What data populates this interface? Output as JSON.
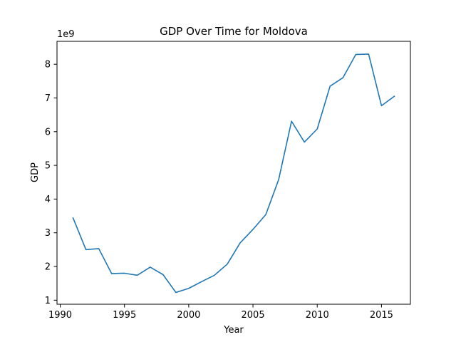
{
  "chart_data": {
    "type": "line",
    "title": "GDP Over Time for Moldova",
    "xlabel": "Year",
    "ylabel": "GDP",
    "y_offset_label": "1e9",
    "xlim": [
      1989.75,
      2017.25
    ],
    "ylim": [
      0.88,
      8.68
    ],
    "x_ticks": [
      1990,
      1995,
      2000,
      2005,
      2010,
      2015
    ],
    "y_ticks": [
      1,
      2,
      3,
      4,
      5,
      6,
      7,
      8
    ],
    "grid": false,
    "legend": "none",
    "line_color": "#1f77b4",
    "series": [
      {
        "x": [
          1991,
          1992,
          1993,
          1994,
          1995,
          1996,
          1997,
          1998,
          1999,
          2000,
          2001,
          2002,
          2003,
          2004,
          2005,
          2006,
          2007,
          2008,
          2009,
          2010,
          2011,
          2012,
          2013,
          2014,
          2015,
          2016
        ],
        "values": [
          3.44,
          2.5,
          2.53,
          1.79,
          1.8,
          1.74,
          1.98,
          1.76,
          1.23,
          1.35,
          1.55,
          1.74,
          2.07,
          2.7,
          3.1,
          3.54,
          4.58,
          6.31,
          5.69,
          6.08,
          7.35,
          7.6,
          8.29,
          8.3,
          6.77,
          7.05
        ]
      }
    ]
  }
}
